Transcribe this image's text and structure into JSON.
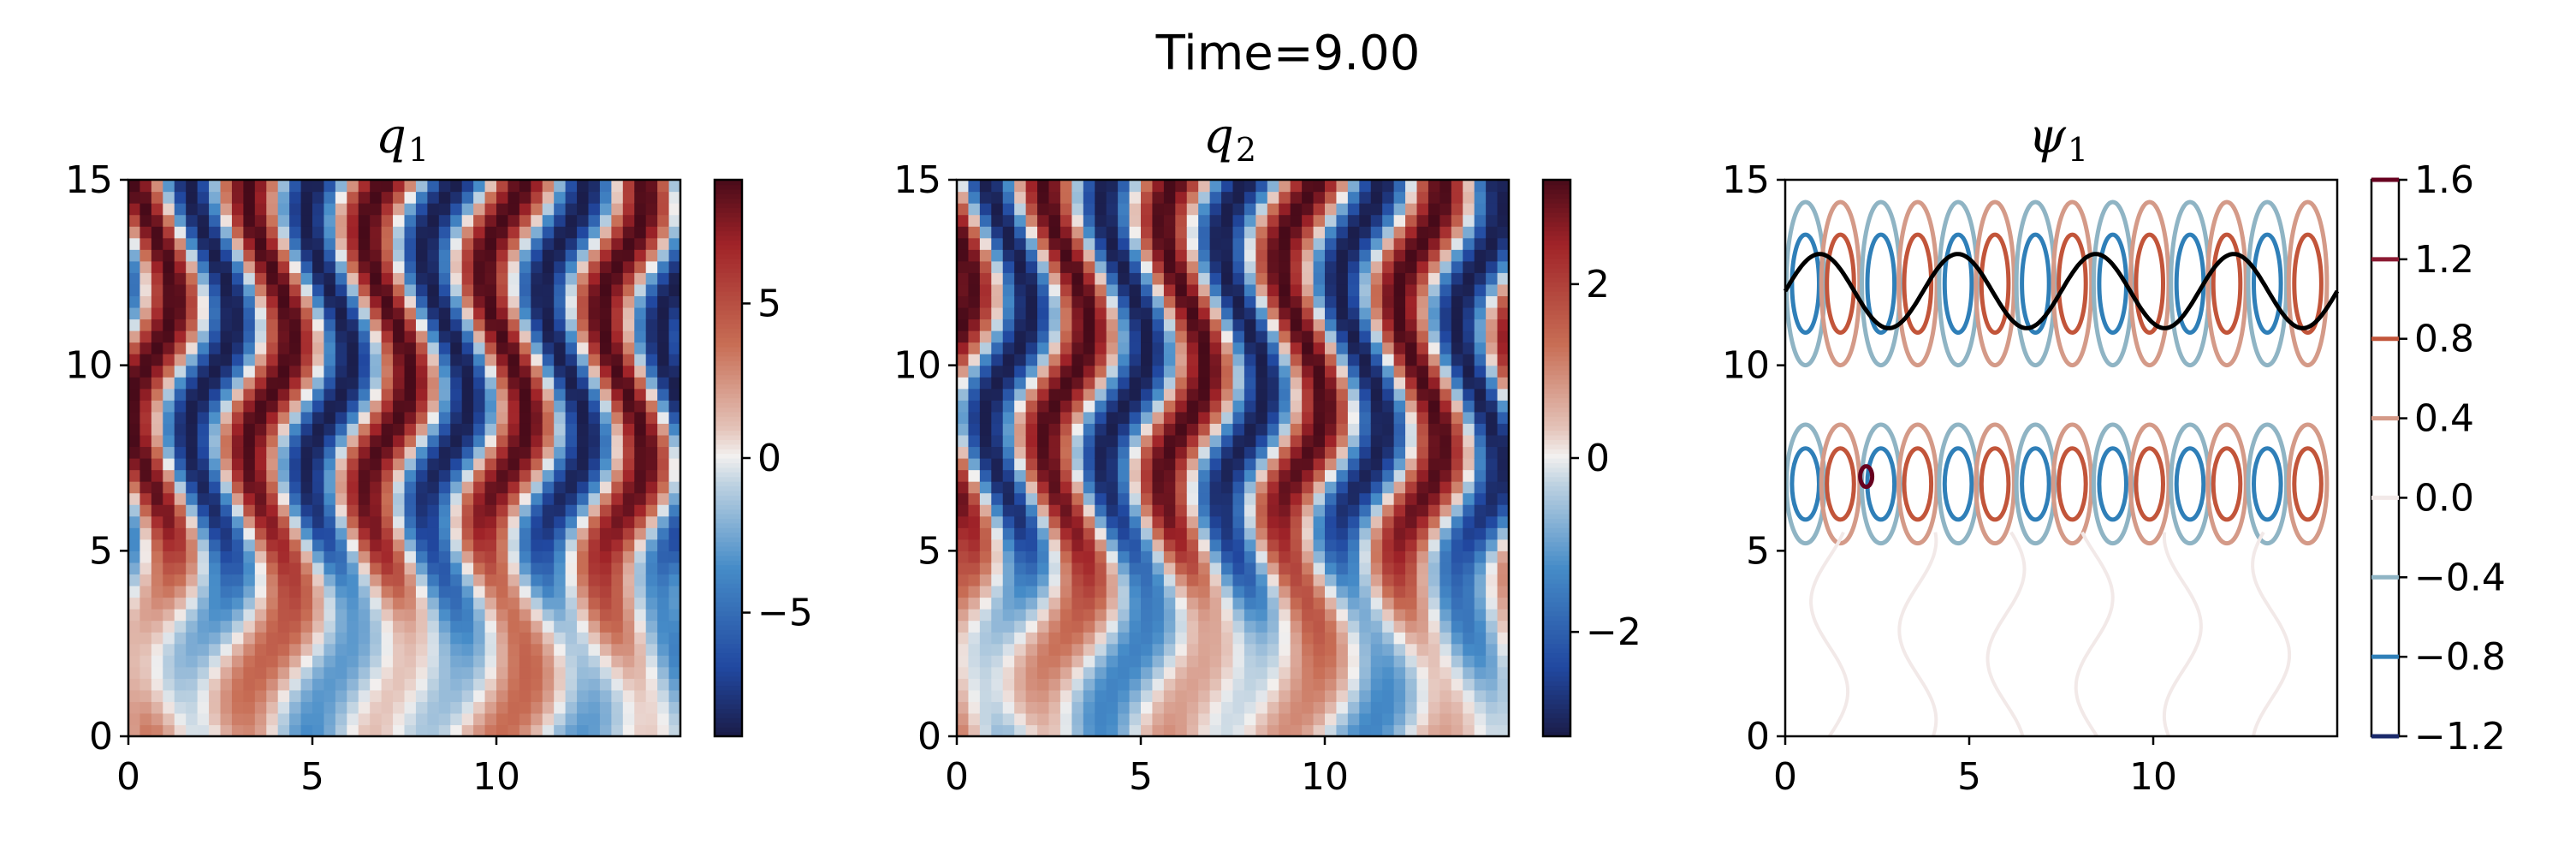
{
  "figure_title": "Time=9.00",
  "colors": {
    "dark_red": "#67001f",
    "red": "#8b1a32",
    "mid_red": "#c2553a",
    "light_red": "#d49a88",
    "near_white": "#f2e9e8",
    "light_blue": "#8fb4c4",
    "mid_blue": "#2f7fb8",
    "dark_blue": "#1b2a6b",
    "wave_line": "#000000"
  },
  "chart_data": [
    {
      "type": "heatmap",
      "name": "q1",
      "title": "q",
      "title_subscript": "1",
      "xlim": [
        0,
        15
      ],
      "ylim": [
        0,
        15
      ],
      "xticks": [
        "0",
        "5",
        "10"
      ],
      "yticks": [
        "0",
        "5",
        "10",
        "15"
      ],
      "colorbar": {
        "range": [
          -9,
          9
        ],
        "ticks": [
          "5",
          "0",
          "−5"
        ],
        "tick_values": [
          5,
          0,
          -5
        ]
      },
      "field_description": "vertical bands of alternating sign, amplitude about 9"
    },
    {
      "type": "heatmap",
      "name": "q2",
      "title": "q",
      "title_subscript": "2",
      "xlim": [
        0,
        15
      ],
      "ylim": [
        0,
        15
      ],
      "xticks": [
        "0",
        "5",
        "10"
      ],
      "yticks": [
        "0",
        "5",
        "10",
        "15"
      ],
      "colorbar": {
        "range": [
          -3.2,
          3.2
        ],
        "ticks": [
          "2",
          "0",
          "−2"
        ],
        "tick_values": [
          2,
          0,
          -2
        ]
      },
      "field_description": "vertical bands of alternating sign, amplitude about 3"
    },
    {
      "type": "contour",
      "name": "psi1",
      "title": "ψ",
      "title_subscript": "1",
      "xlim": [
        0,
        15
      ],
      "ylim": [
        0,
        15
      ],
      "xticks": [
        "0",
        "5",
        "10"
      ],
      "yticks": [
        "0",
        "5",
        "10",
        "15"
      ],
      "contour_levels": [
        1.6,
        1.2,
        0.8,
        0.4,
        0.0,
        -0.4,
        -0.8,
        -1.2
      ],
      "colorbar_ticks": [
        "1.6",
        "1.2",
        "0.8",
        "0.4",
        "0.0",
        "−0.4",
        "−0.8",
        "−1.2"
      ],
      "overlay_line": {
        "description": "sinusoid",
        "center_y": 12,
        "amplitude": 1,
        "wavelength": 3.75
      }
    }
  ]
}
